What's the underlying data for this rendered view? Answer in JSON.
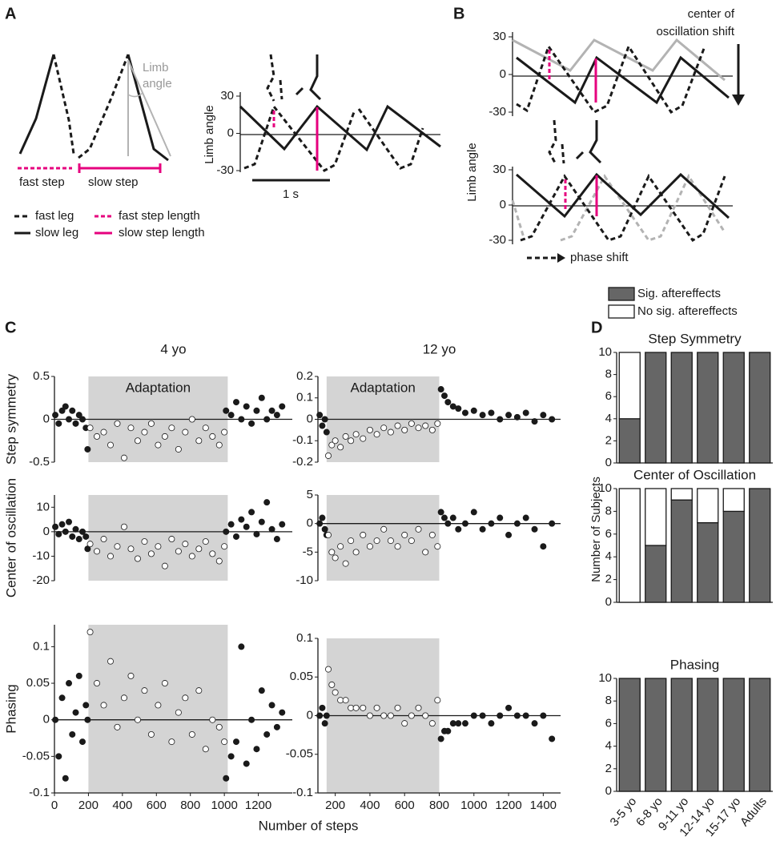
{
  "panel_labels": [
    "A",
    "B",
    "C",
    "D"
  ],
  "diagram_a": {
    "angle_label": [
      "Limb",
      "angle"
    ],
    "fast_step": "fast step",
    "slow_step": "slow step",
    "legend": [
      "fast leg",
      "fast step length",
      "slow leg",
      "slow step length"
    ],
    "ylabel": "Limb angle",
    "ylim": [
      -30,
      30
    ],
    "yticks": [
      30,
      0,
      -30
    ],
    "time_bar": "1 s"
  },
  "diagram_b": {
    "shift_label": [
      "center of",
      "oscillation shift"
    ],
    "ylabel": "Limb angle",
    "ylim": [
      -30,
      30
    ],
    "yticks": [
      30,
      0,
      -30
    ],
    "phase_label": "phase shift"
  },
  "chart_data": [
    {
      "type": "scatter",
      "title": "4 yo",
      "ylabel": "Step symmetry",
      "annotation": "Adaptation",
      "span": [
        200,
        1020
      ],
      "xlim": [
        0,
        1400
      ],
      "ylim": [
        -0.5,
        0.5
      ],
      "yticks": [
        0.5,
        0,
        -0.5
      ],
      "series": [
        {
          "color": "#1a1a1a",
          "x": [
            5,
            25,
            45,
            65,
            85,
            105,
            125,
            145,
            165,
            185,
            195,
            1010,
            1040,
            1070,
            1100,
            1130,
            1160,
            1190,
            1220,
            1250,
            1280,
            1310,
            1340
          ],
          "values": [
            0.05,
            -0.05,
            0.1,
            0.15,
            0,
            0.1,
            -0.05,
            0.05,
            0,
            -0.1,
            -0.35,
            0.1,
            0.05,
            0.2,
            0,
            0.15,
            -0.05,
            0.1,
            0.25,
            0,
            0.1,
            0.05,
            0.15
          ]
        },
        {
          "color": "#ffffff",
          "x": [
            210,
            250,
            290,
            330,
            370,
            410,
            450,
            490,
            530,
            570,
            610,
            650,
            690,
            730,
            770,
            810,
            850,
            890,
            930,
            970,
            1000
          ],
          "values": [
            -0.1,
            -0.2,
            -0.15,
            -0.3,
            -0.05,
            -0.45,
            -0.1,
            -0.25,
            -0.15,
            -0.05,
            -0.3,
            -0.2,
            -0.1,
            -0.35,
            -0.15,
            0,
            -0.25,
            -0.1,
            -0.2,
            -0.3,
            -0.15
          ]
        }
      ]
    },
    {
      "type": "scatter",
      "title": "12 yo",
      "annotation": "Adaptation",
      "span": [
        150,
        800
      ],
      "xlim": [
        100,
        1500
      ],
      "ylim": [
        -0.2,
        0.2
      ],
      "yticks": [
        0.2,
        0.1,
        0,
        -0.1,
        -0.2
      ],
      "series": [
        {
          "color": "#1a1a1a",
          "x": [
            110,
            125,
            140,
            150,
            810,
            830,
            850,
            880,
            910,
            950,
            1000,
            1050,
            1100,
            1150,
            1200,
            1250,
            1300,
            1350,
            1400,
            1450
          ],
          "values": [
            0.02,
            -0.03,
            0,
            -0.06,
            0.14,
            0.11,
            0.08,
            0.06,
            0.05,
            0.03,
            0.04,
            0.02,
            0.03,
            0,
            0.02,
            0.01,
            0.03,
            -0.01,
            0.02,
            0
          ]
        },
        {
          "color": "#ffffff",
          "x": [
            160,
            180,
            200,
            230,
            260,
            290,
            320,
            360,
            400,
            440,
            480,
            520,
            560,
            600,
            640,
            680,
            720,
            760,
            790
          ],
          "values": [
            -0.17,
            -0.12,
            -0.1,
            -0.13,
            -0.08,
            -0.1,
            -0.07,
            -0.09,
            -0.05,
            -0.07,
            -0.04,
            -0.06,
            -0.03,
            -0.05,
            -0.02,
            -0.04,
            -0.03,
            -0.05,
            -0.02
          ]
        }
      ]
    },
    {
      "type": "scatter",
      "ylabel": "Center of oscillation",
      "span": [
        200,
        1020
      ],
      "xlim": [
        0,
        1400
      ],
      "ylim": [
        -20,
        15
      ],
      "yticks": [
        10,
        0,
        -10,
        -20
      ],
      "series": [
        {
          "color": "#1a1a1a",
          "x": [
            5,
            25,
            45,
            65,
            85,
            105,
            125,
            145,
            165,
            185,
            195,
            1010,
            1040,
            1070,
            1100,
            1130,
            1160,
            1190,
            1220,
            1250,
            1280,
            1310,
            1340
          ],
          "values": [
            2,
            -1,
            3,
            0,
            4,
            -2,
            1,
            -3,
            0,
            -2,
            -7,
            0,
            3,
            -2,
            5,
            2,
            8,
            -1,
            4,
            12,
            1,
            -3,
            3
          ]
        },
        {
          "color": "#ffffff",
          "x": [
            210,
            250,
            290,
            330,
            370,
            410,
            450,
            490,
            530,
            570,
            610,
            650,
            690,
            730,
            770,
            810,
            850,
            890,
            930,
            970,
            1000
          ],
          "values": [
            -5,
            -8,
            -3,
            -10,
            -6,
            2,
            -7,
            -11,
            -4,
            -9,
            -6,
            -14,
            -3,
            -8,
            -5,
            -10,
            -7,
            -4,
            -9,
            -12,
            -6
          ]
        }
      ]
    },
    {
      "type": "scatter",
      "span": [
        150,
        800
      ],
      "xlim": [
        100,
        1500
      ],
      "ylim": [
        -10,
        5
      ],
      "yticks": [
        5,
        0,
        -5,
        -10
      ],
      "series": [
        {
          "color": "#1a1a1a",
          "x": [
            110,
            125,
            140,
            150,
            810,
            830,
            850,
            880,
            910,
            950,
            1000,
            1050,
            1100,
            1150,
            1200,
            1250,
            1300,
            1350,
            1400,
            1450
          ],
          "values": [
            0,
            1,
            -1,
            -2,
            2,
            1,
            0,
            1,
            -1,
            0,
            2,
            -1,
            0,
            1,
            -2,
            0,
            1,
            -1,
            -4,
            0
          ]
        },
        {
          "color": "#ffffff",
          "x": [
            160,
            180,
            200,
            230,
            260,
            290,
            320,
            360,
            400,
            440,
            480,
            520,
            560,
            600,
            640,
            680,
            720,
            760,
            790
          ],
          "values": [
            -2,
            -5,
            -6,
            -4,
            -7,
            -3,
            -5,
            -2,
            -4,
            -3,
            -1,
            -3,
            -4,
            -2,
            -3,
            -1,
            -5,
            -2,
            -4
          ]
        }
      ]
    },
    {
      "type": "scatter",
      "ylabel": "Phasing",
      "xlabel": "Number of steps",
      "span": [
        200,
        1020
      ],
      "xlim": [
        0,
        1400
      ],
      "ylim": [
        -0.1,
        0.13
      ],
      "yticks": [
        0.1,
        0.05,
        0,
        -0.05,
        -0.1
      ],
      "xticks": [
        0,
        200,
        400,
        600,
        800,
        1000,
        1200
      ],
      "series": [
        {
          "color": "#1a1a1a",
          "x": [
            5,
            25,
            45,
            65,
            85,
            105,
            125,
            145,
            165,
            185,
            195,
            1010,
            1040,
            1070,
            1100,
            1130,
            1160,
            1190,
            1220,
            1250,
            1280,
            1310,
            1340
          ],
          "values": [
            0,
            -0.05,
            0.03,
            -0.08,
            0.05,
            -0.02,
            0.01,
            0.06,
            -0.03,
            0.02,
            0,
            -0.08,
            -0.05,
            -0.03,
            0.1,
            -0.06,
            0,
            -0.04,
            0.04,
            -0.02,
            0.02,
            -0.01,
            0.01
          ]
        },
        {
          "color": "#ffffff",
          "x": [
            210,
            250,
            290,
            330,
            370,
            410,
            450,
            490,
            530,
            570,
            610,
            650,
            690,
            730,
            770,
            810,
            850,
            890,
            930,
            970,
            1000
          ],
          "values": [
            0.12,
            0.05,
            0.02,
            0.08,
            -0.01,
            0.03,
            0.06,
            0,
            0.04,
            -0.02,
            0.02,
            0.05,
            -0.03,
            0.01,
            0.03,
            -0.02,
            0.04,
            -0.04,
            0,
            -0.01,
            -0.03
          ]
        }
      ]
    },
    {
      "type": "scatter",
      "span": [
        150,
        800
      ],
      "xlim": [
        100,
        1500
      ],
      "ylim": [
        -0.1,
        0.1
      ],
      "yticks": [
        0.1,
        0.05,
        0,
        -0.05,
        -0.1
      ],
      "xticks": [
        200,
        400,
        600,
        800,
        1000,
        1200,
        1400
      ],
      "series": [
        {
          "color": "#1a1a1a",
          "x": [
            110,
            125,
            140,
            150,
            810,
            830,
            850,
            880,
            910,
            950,
            1000,
            1050,
            1100,
            1150,
            1200,
            1250,
            1300,
            1350,
            1400,
            1450
          ],
          "values": [
            0,
            0.01,
            -0.01,
            0,
            -0.03,
            -0.02,
            -0.02,
            -0.01,
            -0.01,
            -0.01,
            0,
            0,
            -0.01,
            0,
            0.01,
            0,
            0,
            -0.01,
            0,
            -0.03
          ]
        },
        {
          "color": "#ffffff",
          "x": [
            160,
            180,
            200,
            230,
            260,
            290,
            320,
            360,
            400,
            440,
            480,
            520,
            560,
            600,
            640,
            680,
            720,
            760,
            790
          ],
          "values": [
            0.06,
            0.04,
            0.03,
            0.02,
            0.02,
            0.01,
            0.01,
            0.01,
            0,
            0.01,
            0,
            0,
            0.01,
            -0.01,
            0,
            0.01,
            0,
            -0.01,
            0.02
          ]
        }
      ]
    },
    {
      "type": "stacked_bar",
      "title": "Step Symmetry",
      "ylim": [
        0,
        10
      ],
      "yticks": [
        0,
        2,
        4,
        6,
        8,
        10
      ],
      "series": [
        {
          "name": "Sig. aftereffects",
          "color": "#666666",
          "values": [
            4,
            10,
            10,
            10,
            10,
            10
          ]
        },
        {
          "name": "No sig. aftereffects",
          "color": "#ffffff",
          "values": [
            6,
            0,
            0,
            0,
            0,
            0
          ]
        }
      ]
    },
    {
      "type": "stacked_bar",
      "title": "Center of Oscillation",
      "ylabel": "Number of Subjects",
      "ylim": [
        0,
        10
      ],
      "yticks": [
        0,
        2,
        4,
        6,
        8,
        10
      ],
      "series": [
        {
          "color": "#666666",
          "values": [
            0,
            5,
            9,
            7,
            8,
            10
          ]
        },
        {
          "color": "#ffffff",
          "values": [
            10,
            5,
            1,
            3,
            2,
            0
          ]
        }
      ]
    },
    {
      "type": "stacked_bar",
      "title": "Phasing",
      "ylim": [
        0,
        10
      ],
      "yticks": [
        0,
        2,
        4,
        6,
        8,
        10
      ],
      "categories": [
        "3-5 yo",
        "6-8 yo",
        "9-11 yo",
        "12-14 yo",
        "15-17 yo",
        "Adults"
      ],
      "series": [
        {
          "color": "#666666",
          "values": [
            10,
            10,
            10,
            10,
            10,
            10
          ]
        },
        {
          "color": "#ffffff",
          "values": [
            0,
            0,
            0,
            0,
            0,
            0
          ]
        }
      ]
    }
  ]
}
